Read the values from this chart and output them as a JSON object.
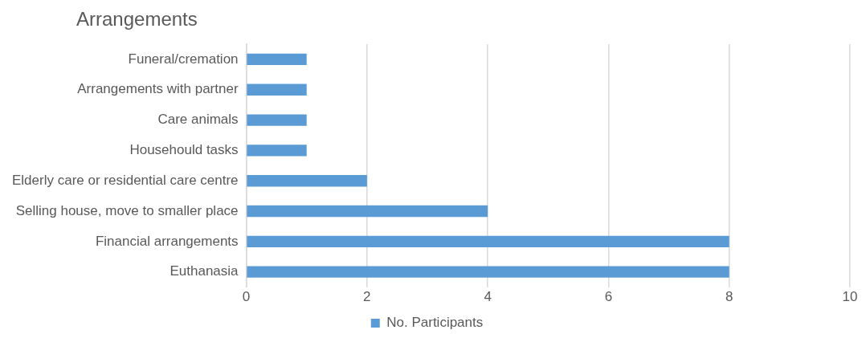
{
  "chart_data": {
    "type": "bar",
    "orientation": "horizontal",
    "title": "Arrangements",
    "categories": [
      "Funeral/cremation",
      "Arrangements with partner",
      "Care animals",
      "Househould tasks",
      "Elderly care or residential care centre",
      "Selling house, move to smaller place",
      "Financial arrangements",
      "Euthanasia"
    ],
    "series": [
      {
        "name": "No. Participants",
        "color": "#5b9bd5",
        "values": [
          1,
          1,
          1,
          1,
          2,
          4,
          8,
          8
        ]
      }
    ],
    "xlim": [
      0,
      10
    ],
    "xticks": [
      0,
      2,
      4,
      6,
      8,
      10
    ],
    "grid": "x",
    "legend": "bottom"
  }
}
